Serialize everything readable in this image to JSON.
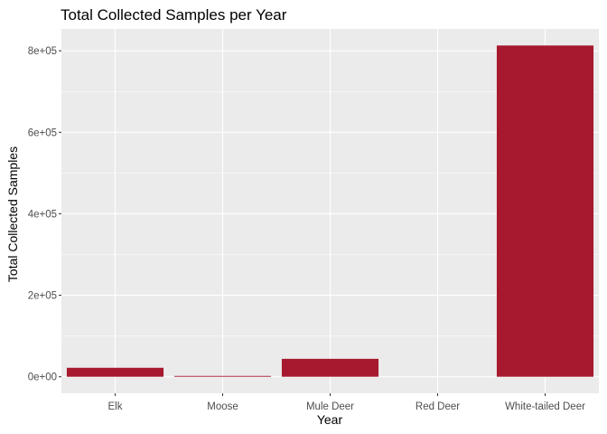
{
  "chart_data": {
    "type": "bar",
    "title": "Total Collected Samples per Year",
    "xlabel": "Year",
    "ylabel": "Total Collected Samples",
    "categories": [
      "Elk",
      "Moose",
      "Mule Deer",
      "Red Deer",
      "White-tailed Deer"
    ],
    "values": [
      22000,
      2000,
      44000,
      0,
      813000
    ],
    "ylim": [
      -40650,
      853650
    ],
    "yticks": [
      0,
      200000,
      400000,
      600000,
      800000
    ],
    "ytick_labels": [
      "0e+00",
      "2e+05",
      "4e+05",
      "6e+05",
      "8e+05"
    ],
    "grid": true,
    "bar_color": "#A6192E",
    "panel_color": "#EBEBEB",
    "grid_color": "#FFFFFF"
  }
}
